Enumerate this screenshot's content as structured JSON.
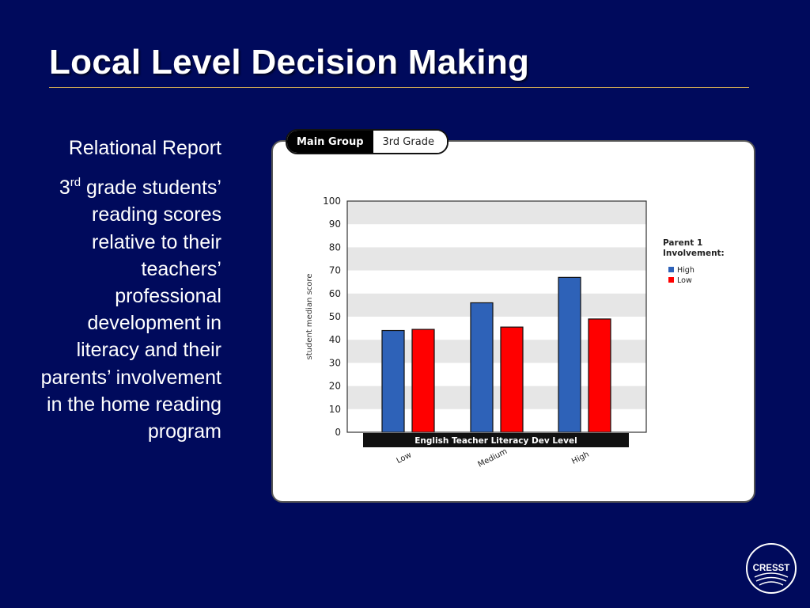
{
  "slide": {
    "title": "Local Level Decision Making"
  },
  "side": {
    "line1": "Relational Report",
    "sup_number": "3",
    "sup_text": "rd",
    "body": " grade students’ reading scores relative to their teachers’ professional development in literacy and their parents’ involvement in the home reading program"
  },
  "tabs": {
    "active_label": "Main Group",
    "inactive_label": "3rd Grade"
  },
  "logo": {
    "text": "CRESST"
  },
  "colors": {
    "background": "#000a5c",
    "series_high": "#2e62b8",
    "series_low": "#ff0000",
    "grid_band": "#e6e6e6"
  },
  "chart_data": {
    "type": "bar",
    "categories": [
      "Low",
      "Medium",
      "High"
    ],
    "series": [
      {
        "name": "High",
        "values": [
          44,
          56,
          67
        ]
      },
      {
        "name": "Low",
        "values": [
          44.5,
          45.5,
          49
        ]
      }
    ],
    "xlabel": "English Teacher Literacy Dev Level",
    "ylabel": "student median score",
    "ylim": [
      0,
      100
    ],
    "yticks": [
      0,
      10,
      20,
      30,
      40,
      50,
      60,
      70,
      80,
      90,
      100
    ],
    "legend_title": "Parent 1 Involvement:",
    "legend_position": "right",
    "grid": true
  }
}
